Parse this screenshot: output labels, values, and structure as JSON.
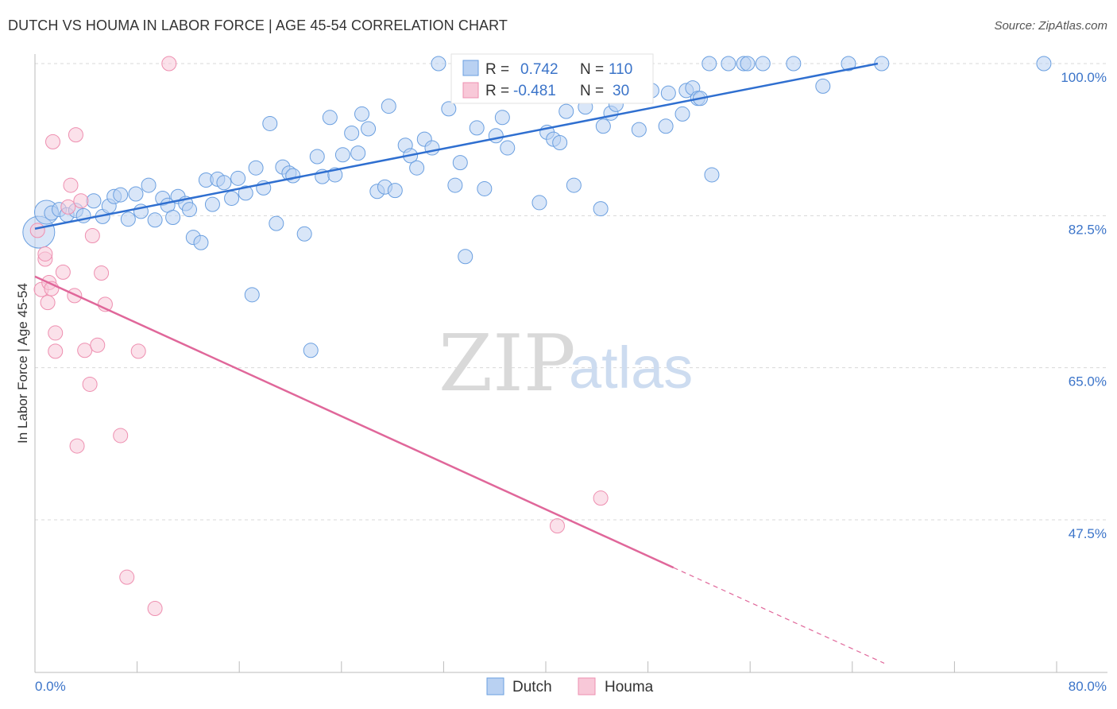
{
  "title": "DUTCH VS HOUMA IN LABOR FORCE | AGE 45-54 CORRELATION CHART",
  "source": "Source: ZipAtlas.com",
  "watermark": {
    "part1": "ZIP",
    "part2": "atlas"
  },
  "colors": {
    "dutch": "#6a9fe0",
    "dutch_fill": "#b9d1f2",
    "dutch_line": "#2f6fd0",
    "houma": "#ee8fb0",
    "houma_fill": "#f8c8d8",
    "houma_line": "#e0679a",
    "tick": "#3b74c9",
    "grid": "#d8d8d8"
  },
  "legend_stats": [
    {
      "r_label": "R =",
      "r_value": "0.742",
      "n_label": "N =",
      "n_value": "110",
      "series": "dutch"
    },
    {
      "r_label": "R =",
      "r_value": "-0.481",
      "n_label": "N =",
      "n_value": "30",
      "series": "houma"
    }
  ],
  "chart_data": {
    "type": "scatter",
    "title": "DUTCH VS HOUMA IN LABOR FORCE | AGE 45-54 CORRELATION CHART",
    "ylabel": "In Labor Force | Age 45-54",
    "xlabel": "",
    "xlim": [
      0,
      80
    ],
    "ylim": [
      30.5,
      102
    ],
    "x_tick_labels": [
      "0.0%",
      "80.0%"
    ],
    "y_ticks": [
      47.5,
      65.0,
      82.5,
      100.0
    ],
    "y_tick_labels": [
      "47.5%",
      "65.0%",
      "82.5%",
      "100.0%"
    ],
    "grid": true,
    "legend": "bottom-center",
    "series": [
      {
        "name": "Dutch",
        "trend": {
          "x0": 0.0,
          "y0": 81.0,
          "x1": 66.0,
          "y1": 100.0
        },
        "points": [
          [
            0.3,
            80.6
          ],
          [
            0.9,
            82.9
          ],
          [
            1.3,
            82.8
          ],
          [
            1.9,
            83.2
          ],
          [
            2.5,
            82.6
          ],
          [
            3.2,
            83.1
          ],
          [
            3.8,
            82.5
          ],
          [
            4.6,
            84.2
          ],
          [
            5.3,
            82.4
          ],
          [
            5.8,
            83.6
          ],
          [
            6.2,
            84.7
          ],
          [
            6.7,
            84.9
          ],
          [
            7.3,
            82.1
          ],
          [
            7.9,
            85.0
          ],
          [
            8.3,
            83.0
          ],
          [
            8.9,
            86.0
          ],
          [
            9.4,
            82.0
          ],
          [
            10.0,
            84.5
          ],
          [
            10.4,
            83.7
          ],
          [
            10.8,
            82.3
          ],
          [
            11.2,
            84.7
          ],
          [
            11.8,
            83.9
          ],
          [
            12.1,
            83.2
          ],
          [
            12.4,
            80.0
          ],
          [
            13.0,
            79.4
          ],
          [
            13.4,
            86.6
          ],
          [
            13.9,
            83.8
          ],
          [
            14.3,
            86.7
          ],
          [
            14.8,
            86.3
          ],
          [
            15.4,
            84.5
          ],
          [
            15.9,
            86.8
          ],
          [
            16.5,
            85.1
          ],
          [
            17.0,
            73.4
          ],
          [
            17.3,
            88.0
          ],
          [
            17.9,
            85.7
          ],
          [
            18.4,
            93.1
          ],
          [
            18.9,
            81.6
          ],
          [
            19.4,
            88.1
          ],
          [
            19.9,
            87.4
          ],
          [
            20.2,
            87.1
          ],
          [
            21.1,
            80.4
          ],
          [
            21.6,
            67.0
          ],
          [
            22.1,
            89.3
          ],
          [
            22.5,
            87.0
          ],
          [
            23.1,
            93.8
          ],
          [
            23.5,
            87.2
          ],
          [
            24.1,
            89.5
          ],
          [
            24.8,
            92.0
          ],
          [
            25.3,
            89.7
          ],
          [
            25.6,
            94.2
          ],
          [
            26.1,
            92.5
          ],
          [
            26.8,
            85.3
          ],
          [
            27.4,
            85.8
          ],
          [
            27.7,
            95.1
          ],
          [
            28.2,
            85.4
          ],
          [
            29.0,
            90.6
          ],
          [
            29.4,
            89.4
          ],
          [
            29.9,
            88.0
          ],
          [
            30.5,
            91.3
          ],
          [
            31.1,
            90.3
          ],
          [
            31.6,
            100.0
          ],
          [
            32.4,
            94.8
          ],
          [
            32.9,
            86.0
          ],
          [
            33.3,
            88.6
          ],
          [
            33.7,
            77.8
          ],
          [
            34.6,
            92.6
          ],
          [
            35.2,
            85.6
          ],
          [
            35.7,
            99.4
          ],
          [
            36.1,
            91.7
          ],
          [
            36.6,
            93.8
          ],
          [
            37.0,
            90.3
          ],
          [
            37.6,
            100.0
          ],
          [
            38.8,
            99.3
          ],
          [
            39.2,
            100.0
          ],
          [
            39.5,
            84.0
          ],
          [
            40.1,
            92.1
          ],
          [
            40.6,
            91.3
          ],
          [
            41.1,
            90.9
          ],
          [
            41.6,
            94.5
          ],
          [
            42.2,
            86.0
          ],
          [
            43.1,
            95.0
          ],
          [
            44.3,
            83.3
          ],
          [
            44.5,
            92.8
          ],
          [
            45.1,
            94.3
          ],
          [
            45.5,
            95.3
          ],
          [
            46.2,
            99.2
          ],
          [
            47.3,
            92.4
          ],
          [
            47.7,
            99.0
          ],
          [
            48.3,
            96.9
          ],
          [
            49.4,
            92.8
          ],
          [
            49.6,
            96.6
          ],
          [
            50.7,
            94.2
          ],
          [
            51.0,
            96.9
          ],
          [
            51.5,
            97.2
          ],
          [
            51.9,
            96.0
          ],
          [
            52.1,
            96.0
          ],
          [
            53.0,
            87.2
          ],
          [
            54.3,
            100.0
          ],
          [
            55.5,
            100.0
          ],
          [
            55.8,
            100.0
          ],
          [
            57.0,
            100.0
          ],
          [
            59.4,
            100.0
          ],
          [
            61.7,
            97.4
          ],
          [
            63.7,
            100.0
          ],
          [
            66.3,
            100.0
          ],
          [
            79.0,
            100.0
          ],
          [
            34.2,
            100.0
          ],
          [
            52.8,
            100.0
          ]
        ]
      },
      {
        "name": "Houma",
        "trend": {
          "x0": 0.0,
          "y0": 75.5,
          "x1": 50.0,
          "y1": 42.0
        },
        "trend_dashed": {
          "x0": 50.0,
          "y0": 42.0,
          "x1": 66.5,
          "y1": 31.0
        },
        "points": [
          [
            0.2,
            80.8
          ],
          [
            0.5,
            74.0
          ],
          [
            0.8,
            77.5
          ],
          [
            0.8,
            78.1
          ],
          [
            1.0,
            72.5
          ],
          [
            1.1,
            74.8
          ],
          [
            1.3,
            74.1
          ],
          [
            1.4,
            91.0
          ],
          [
            1.6,
            69.0
          ],
          [
            1.6,
            66.9
          ],
          [
            2.2,
            76.0
          ],
          [
            2.6,
            83.5
          ],
          [
            2.8,
            86.0
          ],
          [
            3.1,
            73.3
          ],
          [
            3.2,
            91.8
          ],
          [
            3.3,
            56.0
          ],
          [
            3.6,
            84.2
          ],
          [
            3.9,
            67.0
          ],
          [
            4.3,
            63.1
          ],
          [
            4.5,
            80.2
          ],
          [
            4.9,
            67.6
          ],
          [
            5.2,
            75.9
          ],
          [
            5.5,
            72.3
          ],
          [
            6.7,
            57.2
          ],
          [
            7.2,
            40.9
          ],
          [
            8.1,
            66.9
          ],
          [
            9.4,
            37.3
          ],
          [
            10.5,
            100.0
          ],
          [
            40.9,
            46.8
          ],
          [
            44.3,
            50.0
          ]
        ]
      }
    ]
  }
}
